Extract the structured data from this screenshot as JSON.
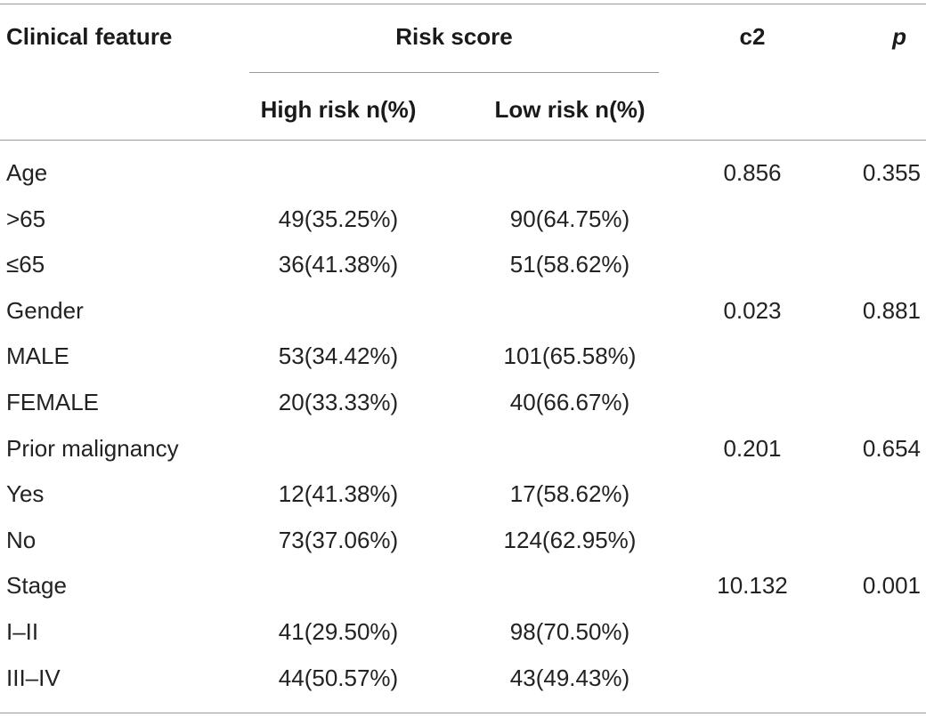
{
  "header": {
    "clinical_feature": "Clinical feature",
    "risk_score": "Risk score",
    "c2": "c2",
    "p": "p",
    "high_risk": "High risk n(%)",
    "low_risk": "Low risk n(%)"
  },
  "rows": [
    {
      "feature": "Age",
      "high": "",
      "low": "",
      "c2": "0.856",
      "p": "0.355"
    },
    {
      "feature": ">65",
      "high": "49(35.25%)",
      "low": "90(64.75%)",
      "c2": "",
      "p": ""
    },
    {
      "feature": "≤65",
      "high": "36(41.38%)",
      "low": "51(58.62%)",
      "c2": "",
      "p": ""
    },
    {
      "feature": "Gender",
      "high": "",
      "low": "",
      "c2": "0.023",
      "p": "0.881"
    },
    {
      "feature": "MALE",
      "high": "53(34.42%)",
      "low": "101(65.58%)",
      "c2": "",
      "p": ""
    },
    {
      "feature": "FEMALE",
      "high": "20(33.33%)",
      "low": "40(66.67%)",
      "c2": "",
      "p": ""
    },
    {
      "feature": "Prior malignancy",
      "high": "",
      "low": "",
      "c2": "0.201",
      "p": "0.654"
    },
    {
      "feature": "Yes",
      "high": "12(41.38%)",
      "low": "17(58.62%)",
      "c2": "",
      "p": ""
    },
    {
      "feature": "No",
      "high": "73(37.06%)",
      "low": "124(62.95%)",
      "c2": "",
      "p": ""
    },
    {
      "feature": "Stage",
      "high": "",
      "low": "",
      "c2": "10.132",
      "p": "0.001"
    },
    {
      "feature": "I–II",
      "high": "41(29.50%)",
      "low": "98(70.50%)",
      "c2": "",
      "p": ""
    },
    {
      "feature": "III–IV",
      "high": "44(50.57%)",
      "low": "43(49.43%)",
      "c2": "",
      "p": ""
    }
  ]
}
